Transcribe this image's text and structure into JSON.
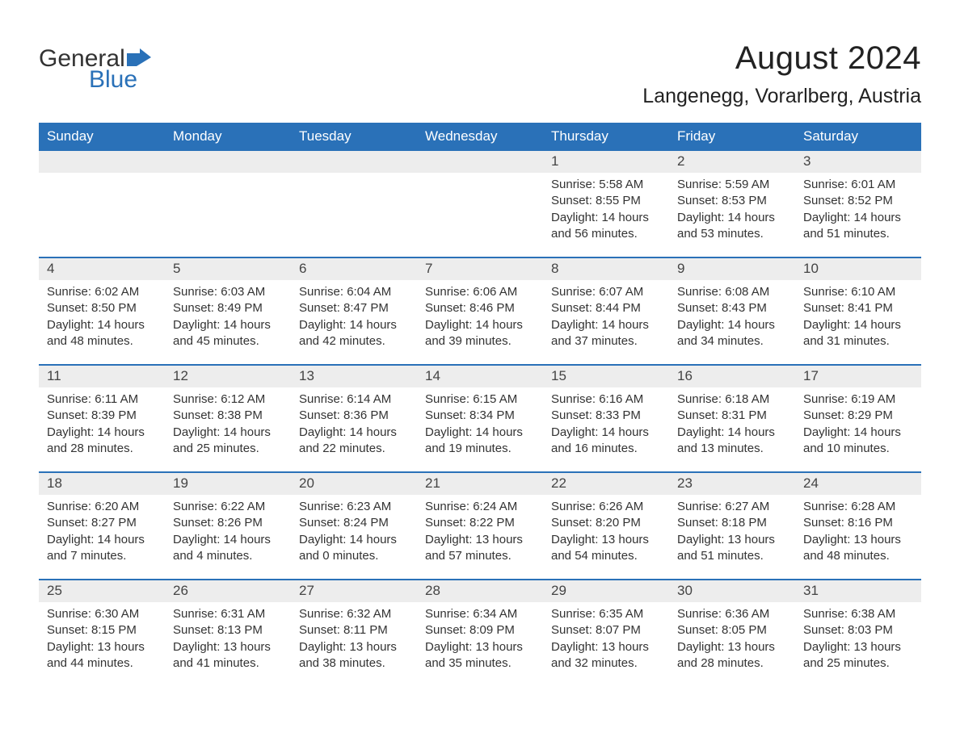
{
  "logo": {
    "text1": "General",
    "text2": "Blue",
    "shape_color": "#2a71b8"
  },
  "title": "August 2024",
  "location": "Langenegg, Vorarlberg, Austria",
  "colors": {
    "header_bg": "#2a71b8",
    "header_text": "#ffffff",
    "daynum_bg": "#ededed",
    "text": "#333333",
    "week_border": "#2a71b8"
  },
  "fonts": {
    "title_pt": 40,
    "location_pt": 25,
    "header_pt": 17,
    "body_pt": 15
  },
  "day_names": [
    "Sunday",
    "Monday",
    "Tuesday",
    "Wednesday",
    "Thursday",
    "Friday",
    "Saturday"
  ],
  "weeks": [
    {
      "days": [
        {
          "n": "",
          "empty": true
        },
        {
          "n": "",
          "empty": true
        },
        {
          "n": "",
          "empty": true
        },
        {
          "n": "",
          "empty": true
        },
        {
          "n": "1",
          "sunrise": "Sunrise: 5:58 AM",
          "sunset": "Sunset: 8:55 PM",
          "dl1": "Daylight: 14 hours",
          "dl2": "and 56 minutes."
        },
        {
          "n": "2",
          "sunrise": "Sunrise: 5:59 AM",
          "sunset": "Sunset: 8:53 PM",
          "dl1": "Daylight: 14 hours",
          "dl2": "and 53 minutes."
        },
        {
          "n": "3",
          "sunrise": "Sunrise: 6:01 AM",
          "sunset": "Sunset: 8:52 PM",
          "dl1": "Daylight: 14 hours",
          "dl2": "and 51 minutes."
        }
      ]
    },
    {
      "days": [
        {
          "n": "4",
          "sunrise": "Sunrise: 6:02 AM",
          "sunset": "Sunset: 8:50 PM",
          "dl1": "Daylight: 14 hours",
          "dl2": "and 48 minutes."
        },
        {
          "n": "5",
          "sunrise": "Sunrise: 6:03 AM",
          "sunset": "Sunset: 8:49 PM",
          "dl1": "Daylight: 14 hours",
          "dl2": "and 45 minutes."
        },
        {
          "n": "6",
          "sunrise": "Sunrise: 6:04 AM",
          "sunset": "Sunset: 8:47 PM",
          "dl1": "Daylight: 14 hours",
          "dl2": "and 42 minutes."
        },
        {
          "n": "7",
          "sunrise": "Sunrise: 6:06 AM",
          "sunset": "Sunset: 8:46 PM",
          "dl1": "Daylight: 14 hours",
          "dl2": "and 39 minutes."
        },
        {
          "n": "8",
          "sunrise": "Sunrise: 6:07 AM",
          "sunset": "Sunset: 8:44 PM",
          "dl1": "Daylight: 14 hours",
          "dl2": "and 37 minutes."
        },
        {
          "n": "9",
          "sunrise": "Sunrise: 6:08 AM",
          "sunset": "Sunset: 8:43 PM",
          "dl1": "Daylight: 14 hours",
          "dl2": "and 34 minutes."
        },
        {
          "n": "10",
          "sunrise": "Sunrise: 6:10 AM",
          "sunset": "Sunset: 8:41 PM",
          "dl1": "Daylight: 14 hours",
          "dl2": "and 31 minutes."
        }
      ]
    },
    {
      "days": [
        {
          "n": "11",
          "sunrise": "Sunrise: 6:11 AM",
          "sunset": "Sunset: 8:39 PM",
          "dl1": "Daylight: 14 hours",
          "dl2": "and 28 minutes."
        },
        {
          "n": "12",
          "sunrise": "Sunrise: 6:12 AM",
          "sunset": "Sunset: 8:38 PM",
          "dl1": "Daylight: 14 hours",
          "dl2": "and 25 minutes."
        },
        {
          "n": "13",
          "sunrise": "Sunrise: 6:14 AM",
          "sunset": "Sunset: 8:36 PM",
          "dl1": "Daylight: 14 hours",
          "dl2": "and 22 minutes."
        },
        {
          "n": "14",
          "sunrise": "Sunrise: 6:15 AM",
          "sunset": "Sunset: 8:34 PM",
          "dl1": "Daylight: 14 hours",
          "dl2": "and 19 minutes."
        },
        {
          "n": "15",
          "sunrise": "Sunrise: 6:16 AM",
          "sunset": "Sunset: 8:33 PM",
          "dl1": "Daylight: 14 hours",
          "dl2": "and 16 minutes."
        },
        {
          "n": "16",
          "sunrise": "Sunrise: 6:18 AM",
          "sunset": "Sunset: 8:31 PM",
          "dl1": "Daylight: 14 hours",
          "dl2": "and 13 minutes."
        },
        {
          "n": "17",
          "sunrise": "Sunrise: 6:19 AM",
          "sunset": "Sunset: 8:29 PM",
          "dl1": "Daylight: 14 hours",
          "dl2": "and 10 minutes."
        }
      ]
    },
    {
      "days": [
        {
          "n": "18",
          "sunrise": "Sunrise: 6:20 AM",
          "sunset": "Sunset: 8:27 PM",
          "dl1": "Daylight: 14 hours",
          "dl2": "and 7 minutes."
        },
        {
          "n": "19",
          "sunrise": "Sunrise: 6:22 AM",
          "sunset": "Sunset: 8:26 PM",
          "dl1": "Daylight: 14 hours",
          "dl2": "and 4 minutes."
        },
        {
          "n": "20",
          "sunrise": "Sunrise: 6:23 AM",
          "sunset": "Sunset: 8:24 PM",
          "dl1": "Daylight: 14 hours",
          "dl2": "and 0 minutes."
        },
        {
          "n": "21",
          "sunrise": "Sunrise: 6:24 AM",
          "sunset": "Sunset: 8:22 PM",
          "dl1": "Daylight: 13 hours",
          "dl2": "and 57 minutes."
        },
        {
          "n": "22",
          "sunrise": "Sunrise: 6:26 AM",
          "sunset": "Sunset: 8:20 PM",
          "dl1": "Daylight: 13 hours",
          "dl2": "and 54 minutes."
        },
        {
          "n": "23",
          "sunrise": "Sunrise: 6:27 AM",
          "sunset": "Sunset: 8:18 PM",
          "dl1": "Daylight: 13 hours",
          "dl2": "and 51 minutes."
        },
        {
          "n": "24",
          "sunrise": "Sunrise: 6:28 AM",
          "sunset": "Sunset: 8:16 PM",
          "dl1": "Daylight: 13 hours",
          "dl2": "and 48 minutes."
        }
      ]
    },
    {
      "days": [
        {
          "n": "25",
          "sunrise": "Sunrise: 6:30 AM",
          "sunset": "Sunset: 8:15 PM",
          "dl1": "Daylight: 13 hours",
          "dl2": "and 44 minutes."
        },
        {
          "n": "26",
          "sunrise": "Sunrise: 6:31 AM",
          "sunset": "Sunset: 8:13 PM",
          "dl1": "Daylight: 13 hours",
          "dl2": "and 41 minutes."
        },
        {
          "n": "27",
          "sunrise": "Sunrise: 6:32 AM",
          "sunset": "Sunset: 8:11 PM",
          "dl1": "Daylight: 13 hours",
          "dl2": "and 38 minutes."
        },
        {
          "n": "28",
          "sunrise": "Sunrise: 6:34 AM",
          "sunset": "Sunset: 8:09 PM",
          "dl1": "Daylight: 13 hours",
          "dl2": "and 35 minutes."
        },
        {
          "n": "29",
          "sunrise": "Sunrise: 6:35 AM",
          "sunset": "Sunset: 8:07 PM",
          "dl1": "Daylight: 13 hours",
          "dl2": "and 32 minutes."
        },
        {
          "n": "30",
          "sunrise": "Sunrise: 6:36 AM",
          "sunset": "Sunset: 8:05 PM",
          "dl1": "Daylight: 13 hours",
          "dl2": "and 28 minutes."
        },
        {
          "n": "31",
          "sunrise": "Sunrise: 6:38 AM",
          "sunset": "Sunset: 8:03 PM",
          "dl1": "Daylight: 13 hours",
          "dl2": "and 25 minutes."
        }
      ]
    }
  ]
}
